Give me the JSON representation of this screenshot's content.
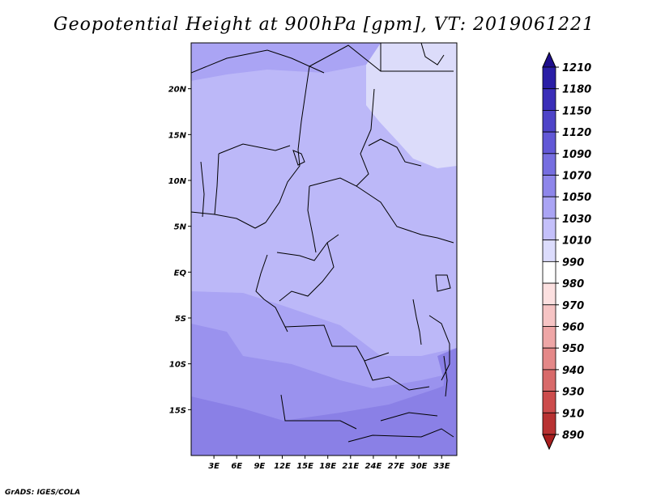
{
  "title": "Geopotential Height at 900hPa [gpm], VT: 2019061221",
  "credit": "GrADS: IGES/COLA",
  "map": {
    "lat_range": [
      -20,
      25
    ],
    "lon_range": [
      0,
      35
    ],
    "lat_ticks": [
      {
        "value": 20,
        "label": "20N"
      },
      {
        "value": 15,
        "label": "15N"
      },
      {
        "value": 10,
        "label": "10N"
      },
      {
        "value": 5,
        "label": "5N"
      },
      {
        "value": 0,
        "label": "EQ"
      },
      {
        "value": -5,
        "label": "5S"
      },
      {
        "value": -10,
        "label": "10S"
      },
      {
        "value": -15,
        "label": "15S"
      }
    ],
    "lon_ticks": [
      {
        "value": 3,
        "label": "3E"
      },
      {
        "value": 6,
        "label": "6E"
      },
      {
        "value": 9,
        "label": "9E"
      },
      {
        "value": 12,
        "label": "12E"
      },
      {
        "value": 15,
        "label": "15E"
      },
      {
        "value": 18,
        "label": "18E"
      },
      {
        "value": 21,
        "label": "21E"
      },
      {
        "value": 24,
        "label": "24E"
      },
      {
        "value": 27,
        "label": "27E"
      },
      {
        "value": 30,
        "label": "30E"
      },
      {
        "value": 33,
        "label": "33E"
      }
    ],
    "fill_colors": {
      "lightest": "#dcdcfa",
      "light": "#bcb8f8",
      "mid": "#aaa4f4",
      "darker": "#9a92ee",
      "darkest": "#8a80e6"
    }
  },
  "colorbar": {
    "levels": [
      {
        "label": "1210",
        "color": "#1e0e8c"
      },
      {
        "label": "1180",
        "color": "#2a1ea6"
      },
      {
        "label": "1150",
        "color": "#3a2eb8"
      },
      {
        "label": "1120",
        "color": "#4e44c8"
      },
      {
        "label": "1090",
        "color": "#6258d6"
      },
      {
        "label": "1070",
        "color": "#766ee0"
      },
      {
        "label": "1050",
        "color": "#8e86ea"
      },
      {
        "label": "1030",
        "color": "#aaa4f4"
      },
      {
        "label": "1010",
        "color": "#c4c0fa"
      },
      {
        "label": "990",
        "color": "#dcdcfc"
      },
      {
        "label": "980",
        "color": "#ffffff"
      },
      {
        "label": "970",
        "color": "#fce0e0"
      },
      {
        "label": "960",
        "color": "#f6c4c4"
      },
      {
        "label": "950",
        "color": "#eea6a6"
      },
      {
        "label": "940",
        "color": "#e48888"
      },
      {
        "label": "930",
        "color": "#d86a6a"
      },
      {
        "label": "910",
        "color": "#cc4c4c"
      },
      {
        "label": "890",
        "color": "#b83232"
      }
    ],
    "bottom_color": "#a81e1e"
  }
}
